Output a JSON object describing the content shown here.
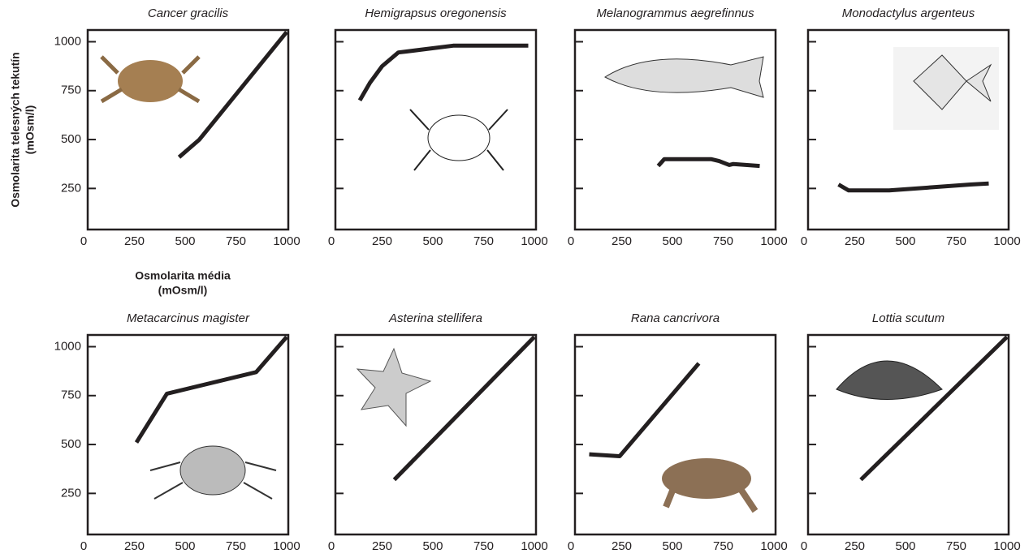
{
  "y_axis_label": [
    "Osmolarita telesných tekutín",
    "(mOsm/l)"
  ],
  "x_axis_label": [
    "Osmolarita média",
    "(mOsm/l)"
  ],
  "chart_data": [
    {
      "type": "line",
      "title": "Cancer gracilis",
      "x": [
        470,
        570,
        1000
      ],
      "y": [
        410,
        500,
        1050
      ],
      "xlim": [
        20,
        1008
      ],
      "ylim": [
        40,
        1060
      ],
      "xticks": [
        0,
        250,
        500,
        750,
        1000
      ],
      "yticks": [
        250,
        500,
        750,
        1000
      ],
      "ytick_labels": true,
      "color": "#231f20"
    },
    {
      "type": "line",
      "title": "Hemigrapsus oregonensis",
      "x": [
        140,
        190,
        250,
        330,
        370,
        600,
        970
      ],
      "y": [
        700,
        790,
        875,
        945,
        950,
        980,
        980
      ],
      "xlim": [
        20,
        1008
      ],
      "ylim": [
        40,
        1060
      ],
      "xticks": [
        0,
        250,
        500,
        750,
        1000
      ],
      "yticks": [
        250,
        500,
        750,
        1000
      ],
      "ytick_labels": false,
      "color": "#231f20"
    },
    {
      "type": "line",
      "title": "Melanogrammus aegrefinnus",
      "x": [
        430,
        460,
        690,
        730,
        780,
        800,
        930
      ],
      "y": [
        365,
        400,
        400,
        390,
        370,
        375,
        365
      ],
      "xlim": [
        20,
        1008
      ],
      "ylim": [
        40,
        1060
      ],
      "xticks": [
        0,
        250,
        500,
        750,
        1000
      ],
      "yticks": [
        250,
        500,
        750,
        1000
      ],
      "ytick_labels": false,
      "color": "#231f20"
    },
    {
      "type": "line",
      "title": "Monodactylus argenteus",
      "x": [
        170,
        220,
        420,
        820,
        910
      ],
      "y": [
        270,
        240,
        240,
        270,
        275
      ],
      "xlim": [
        20,
        1008
      ],
      "ylim": [
        40,
        1060
      ],
      "xticks": [
        0,
        250,
        500,
        750,
        1000
      ],
      "yticks": [
        250,
        500,
        750,
        1000
      ],
      "ytick_labels": false,
      "color": "#231f20"
    },
    {
      "type": "line",
      "title": "Metacarcinus magister",
      "x": [
        260,
        410,
        850,
        1000
      ],
      "y": [
        510,
        760,
        870,
        1050
      ],
      "xlim": [
        20,
        1008
      ],
      "ylim": [
        40,
        1060
      ],
      "xticks": [
        0,
        250,
        500,
        750,
        1000
      ],
      "yticks": [
        250,
        500,
        750,
        1000
      ],
      "ytick_labels": true,
      "color": "#231f20"
    },
    {
      "type": "line",
      "title": "Asterina stellifera",
      "x": [
        310,
        1000
      ],
      "y": [
        320,
        1050
      ],
      "xlim": [
        20,
        1008
      ],
      "ylim": [
        40,
        1060
      ],
      "xticks": [
        0,
        250,
        500,
        750,
        1000
      ],
      "yticks": [
        250,
        500,
        750,
        1000
      ],
      "ytick_labels": false,
      "color": "#231f20"
    },
    {
      "type": "line",
      "title": "Rana cancrivora",
      "x": [
        90,
        240,
        630
      ],
      "y": [
        450,
        440,
        915
      ],
      "xlim": [
        20,
        1008
      ],
      "ylim": [
        40,
        1060
      ],
      "xticks": [
        0,
        250,
        500,
        750,
        1000
      ],
      "yticks": [
        250,
        500,
        750,
        1000
      ],
      "ytick_labels": false,
      "color": "#231f20"
    },
    {
      "type": "line",
      "title": "Lottia scutum",
      "x": [
        280,
        1000
      ],
      "y": [
        320,
        1050
      ],
      "xlim": [
        20,
        1008
      ],
      "ylim": [
        40,
        1060
      ],
      "xticks": [
        0,
        250,
        500,
        750,
        1000
      ],
      "yticks": [
        250,
        500,
        750,
        1000
      ],
      "ytick_labels": false,
      "color": "#231f20"
    }
  ]
}
